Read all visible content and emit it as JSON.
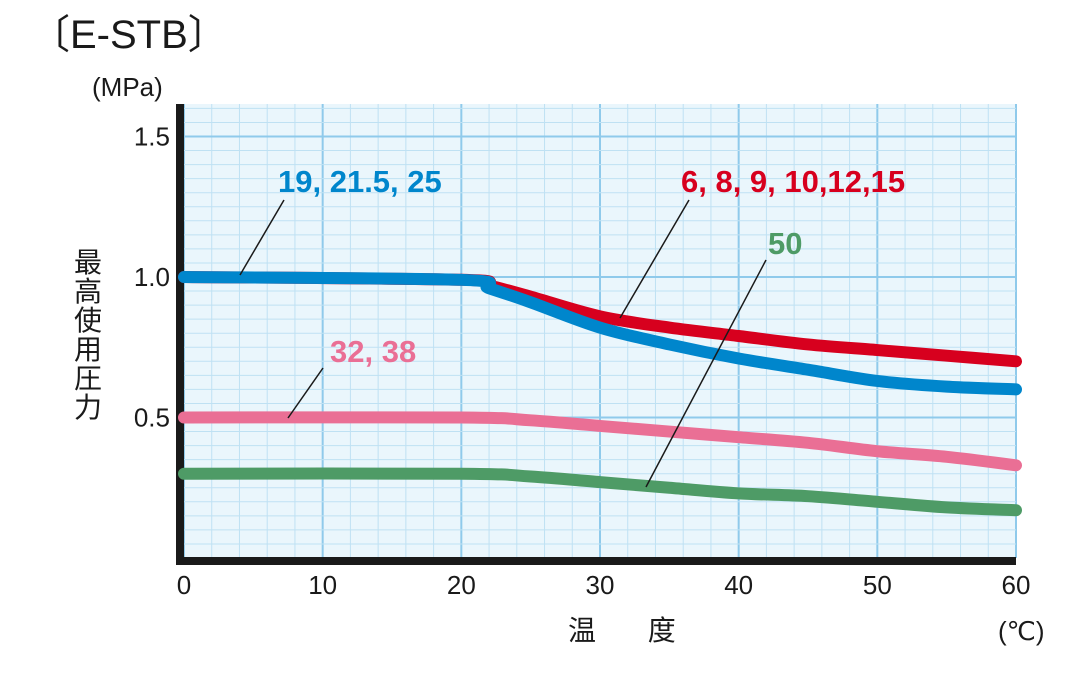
{
  "title": "〔E-STB〕",
  "chart_data": {
    "type": "line",
    "xlabel": "温 度",
    "x_unit": "(℃)",
    "ylabel": "最高使用圧力",
    "y_unit": "(MPa)",
    "xlim": [
      0,
      60
    ],
    "ylim": [
      0,
      1.6
    ],
    "x_ticks": [
      "0",
      "10",
      "20",
      "30",
      "40",
      "50",
      "60"
    ],
    "y_ticks": [
      "0.5",
      "1.0",
      "1.5"
    ],
    "grid": true,
    "series": [
      {
        "name": "6, 8, 9, 10,12,15",
        "color": "#d7001e",
        "points": [
          [
            0,
            1.0
          ],
          [
            20,
            0.99
          ],
          [
            22,
            0.97
          ],
          [
            25,
            0.93
          ],
          [
            30,
            0.86
          ],
          [
            35,
            0.82
          ],
          [
            40,
            0.79
          ],
          [
            45,
            0.76
          ],
          [
            50,
            0.74
          ],
          [
            55,
            0.72
          ],
          [
            60,
            0.7
          ]
        ]
      },
      {
        "name": "19, 21.5, 25",
        "color": "#0086cc",
        "points": [
          [
            0,
            1.0
          ],
          [
            20,
            0.99
          ],
          [
            22,
            0.96
          ],
          [
            25,
            0.91
          ],
          [
            30,
            0.82
          ],
          [
            35,
            0.76
          ],
          [
            40,
            0.71
          ],
          [
            45,
            0.67
          ],
          [
            50,
            0.63
          ],
          [
            55,
            0.61
          ],
          [
            60,
            0.6
          ]
        ]
      },
      {
        "name": "32, 38",
        "color": "#ea6f95",
        "points": [
          [
            0,
            0.5
          ],
          [
            20,
            0.5
          ],
          [
            25,
            0.49
          ],
          [
            30,
            0.47
          ],
          [
            35,
            0.45
          ],
          [
            40,
            0.43
          ],
          [
            45,
            0.41
          ],
          [
            50,
            0.38
          ],
          [
            55,
            0.36
          ],
          [
            60,
            0.33
          ]
        ]
      },
      {
        "name": "50",
        "color": "#4e9b66",
        "points": [
          [
            0,
            0.3
          ],
          [
            20,
            0.3
          ],
          [
            25,
            0.29
          ],
          [
            30,
            0.27
          ],
          [
            35,
            0.25
          ],
          [
            40,
            0.23
          ],
          [
            45,
            0.22
          ],
          [
            50,
            0.2
          ],
          [
            55,
            0.18
          ],
          [
            60,
            0.17
          ]
        ]
      }
    ]
  }
}
